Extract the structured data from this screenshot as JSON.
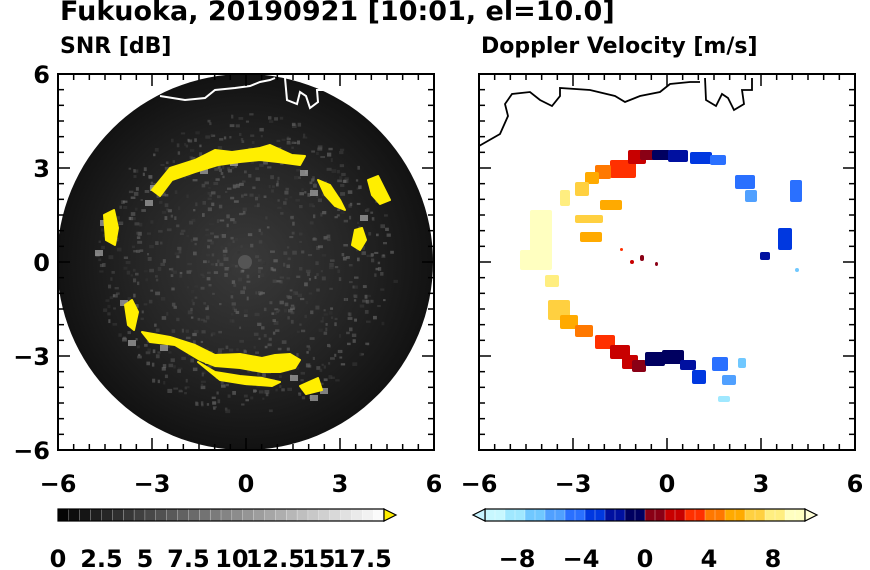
{
  "title": "Fukuoka, 20190921 [10:01, el=10.0]",
  "panels": {
    "left": {
      "title": "SNR [dB]"
    },
    "right": {
      "title": "Doppler Velocity [m/s]"
    }
  },
  "chart_data": [
    {
      "type": "heatmap",
      "title": "SNR [dB]",
      "subtype": "radar PPI",
      "xlim": [
        -6,
        6
      ],
      "ylim": [
        -6,
        6
      ],
      "xticks": [
        "−6",
        "−3",
        "0",
        "3",
        "6"
      ],
      "yticks": [
        "−6",
        "−3",
        "0",
        "3",
        "6"
      ],
      "max_range": 6,
      "colorbar": {
        "min": 0,
        "max": 18.75,
        "step": 0.625,
        "extend": "max",
        "tick_values": [
          0,
          2.5,
          5,
          7.5,
          10,
          12.5,
          15,
          17.5
        ],
        "tick_labels": [
          "0",
          "2.5",
          "5",
          "7.5",
          "10",
          "12.5",
          "15",
          "17.5"
        ],
        "colormap": "gray, black to white",
        "extend_color": "#ffee00"
      },
      "echo_band_color": "#ffee00",
      "background_color": "#151515"
    },
    {
      "type": "heatmap",
      "title": "Doppler Velocity [m/s]",
      "subtype": "radar PPI",
      "xlim": [
        -6,
        6
      ],
      "ylim": [
        -6,
        6
      ],
      "xticks": [
        "−6",
        "−3",
        "0",
        "3",
        "6"
      ],
      "yticks": [],
      "colorbar": {
        "min": -10,
        "max": 10,
        "step": 0.625,
        "extend": "both",
        "tick_values": [
          -8,
          -4,
          0,
          4,
          8
        ],
        "tick_labels": [
          "−8",
          "−4",
          "0",
          "4",
          "8"
        ],
        "colormap": "light cyan → blue → dark navy | dark red → red → orange → yellow → light yellow",
        "under_color": "#c8f4ff",
        "over_color": "#ffffd8"
      }
    }
  ],
  "colors": {
    "coastline_left": "#ffffff",
    "coastline_right": "#000000",
    "velocity_positive": [
      "#8a0015",
      "#c80000",
      "#ff3000",
      "#ff7800",
      "#ffaa00",
      "#ffd040",
      "#ffee80",
      "#ffffc0"
    ],
    "velocity_negative": [
      "#000060",
      "#0010a0",
      "#0038e0",
      "#2a70ff",
      "#50a0ff",
      "#70c8ff",
      "#a0e8ff",
      "#c8f8ff"
    ]
  }
}
